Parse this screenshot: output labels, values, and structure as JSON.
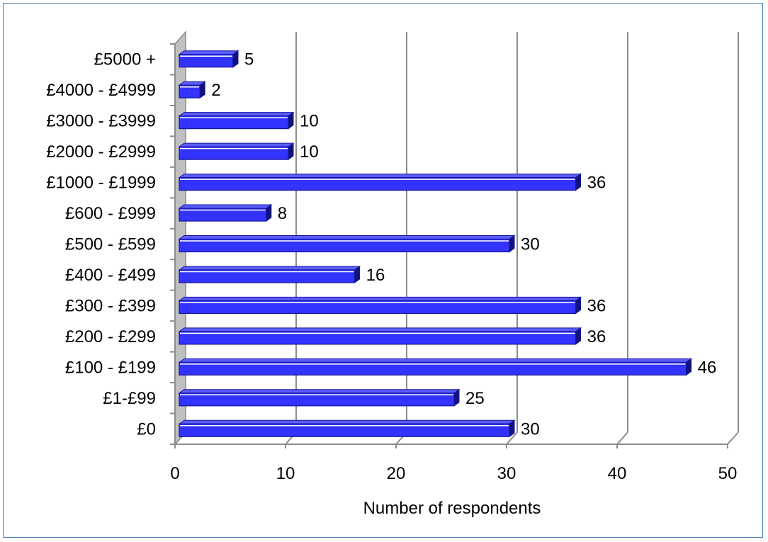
{
  "chart_data": {
    "type": "bar",
    "orientation": "horizontal",
    "style": "3d",
    "categories": [
      "£0",
      "£1-£99",
      "£100 - £199",
      "£200 - £299",
      "£300 - £399",
      "£400 - £499",
      "£500 - £599",
      "£600 - £999",
      "£1000 - £1999",
      "£2000 - £2999",
      "£3000 - £3999",
      "£4000 - £4999",
      "£5000 +"
    ],
    "values": [
      30,
      25,
      46,
      36,
      36,
      16,
      30,
      8,
      36,
      10,
      10,
      2,
      5
    ],
    "xlabel": "Number of respondents",
    "ylabel": "",
    "xlim": [
      0,
      50
    ],
    "x_ticks": [
      "0",
      "10",
      "20",
      "30",
      "40",
      "50"
    ],
    "grid": "vertical",
    "data_labels": true,
    "colors": {
      "bar": "#3333ff",
      "bar_edge": "#16169c",
      "bar_side": "#12127a",
      "bar_highlight": "#ffffff",
      "grid": "#8c8c8c",
      "wall": "#c0c0c0",
      "frame": "#4a7ebb"
    }
  }
}
